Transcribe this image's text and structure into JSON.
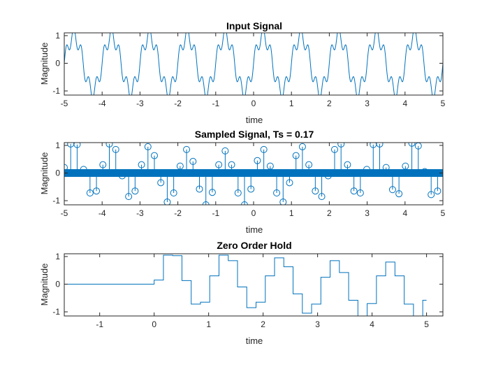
{
  "figure": {
    "background": "#ffffff",
    "line_color": "#0072bd",
    "axis_color": "#262626"
  },
  "chart_data": [
    {
      "type": "line",
      "title": "Input Signal",
      "xlabel": "time",
      "ylabel": "Magnitude",
      "xlim": [
        -5,
        5
      ],
      "ylim": [
        -1.15,
        1.1
      ],
      "xticks": [
        -5,
        -4,
        -3,
        -2,
        -1,
        0,
        1,
        2,
        3,
        4,
        5
      ],
      "xtick_labels": [
        "-5",
        "-4",
        "-3",
        "-2",
        "-1",
        "0",
        "1",
        "2",
        "3",
        "4",
        "5"
      ],
      "yticks": [
        -1,
        0,
        1
      ],
      "ytick_labels": [
        "-1",
        "0",
        "1"
      ],
      "grid": false,
      "signal": "sin(2*pi*t) + 0.3*sin(10*pi*t)",
      "x": [
        -5,
        -4.9,
        -4.8,
        -4.7,
        -4.6,
        -4.5,
        -4.4,
        -4.3,
        -4.2,
        -4.1,
        -4.0,
        -3.9,
        -3.8,
        -3.7,
        -3.6,
        -3.5,
        -3.4,
        -3.3,
        -3.2,
        -3.1,
        -3.0,
        -2.9,
        -2.8,
        -2.7,
        -2.6,
        -2.5,
        -2.4,
        -2.3,
        -2.2,
        -2.1,
        -2.0,
        -1.9,
        -1.8,
        -1.7,
        -1.6,
        -1.5,
        -1.4,
        -1.3,
        -1.2,
        -1.1,
        -1.0,
        -0.9,
        -0.8,
        -0.7,
        -0.6,
        -0.5,
        -0.4,
        -0.3,
        -0.2,
        -0.1,
        0.0,
        0.1,
        0.2,
        0.3,
        0.4,
        0.5,
        0.6,
        0.7,
        0.8,
        0.9,
        1.0,
        1.1,
        1.2,
        1.3,
        1.4,
        1.5,
        1.6,
        1.7,
        1.8,
        1.9,
        2.0,
        2.1,
        2.2,
        2.3,
        2.4,
        2.5,
        2.6,
        2.7,
        2.8,
        2.9,
        3.0,
        3.1,
        3.2,
        3.3,
        3.4,
        3.5,
        3.6,
        3.7,
        3.8,
        3.9,
        4.0,
        4.1,
        4.2,
        4.3,
        4.4,
        4.5,
        4.6,
        4.7,
        4.8,
        4.9,
        5.0
      ],
      "y": [
        0,
        0.588,
        0.951,
        0.951,
        0.588,
        0,
        -0.588,
        -0.951,
        -0.951,
        -0.588,
        0,
        0.588,
        0.951,
        0.951,
        0.588,
        0,
        -0.588,
        -0.951,
        -0.951,
        -0.588,
        0,
        0.588,
        0.951,
        0.951,
        0.588,
        0,
        -0.588,
        -0.951,
        -0.951,
        -0.588,
        0,
        0.588,
        0.951,
        0.951,
        0.588,
        0,
        -0.588,
        -0.951,
        -0.951,
        -0.588,
        0,
        0.588,
        0.951,
        0.951,
        0.588,
        0,
        -0.588,
        -0.951,
        -0.951,
        -0.588,
        0,
        0.588,
        0.951,
        0.951,
        0.588,
        0,
        -0.588,
        -0.951,
        -0.951,
        -0.588,
        0,
        0.588,
        0.951,
        0.951,
        0.588,
        0,
        -0.588,
        -0.951,
        -0.951,
        -0.588,
        0,
        0.588,
        0.951,
        0.951,
        0.588,
        0,
        -0.588,
        -0.951,
        -0.951,
        -0.588,
        0,
        0.588,
        0.951,
        0.951,
        0.588,
        0,
        -0.588,
        -0.951,
        -0.951,
        -0.588,
        0,
        0.588,
        0.951,
        0.951,
        0.588,
        0,
        -0.588,
        -0.951,
        -0.951,
        -0.588,
        0
      ]
    },
    {
      "type": "stem",
      "title": "Sampled Signal, Ts = 0.17",
      "xlabel": "time",
      "ylabel": "Magnitude",
      "xlim": [
        -5,
        5
      ],
      "ylim": [
        -1.15,
        1.1
      ],
      "xticks": [
        -5,
        -4,
        -3,
        -2,
        -1,
        0,
        1,
        2,
        3,
        4,
        5
      ],
      "xtick_labels": [
        "-5",
        "-4",
        "-3",
        "-2",
        "-1",
        "0",
        "1",
        "2",
        "3",
        "4",
        "5"
      ],
      "yticks": [
        -1,
        0,
        1
      ],
      "ytick_labels": [
        "-1",
        "0",
        "1"
      ],
      "grid": false,
      "sample_period": 0.17,
      "x": [
        -5.0,
        -4.83,
        -4.66,
        -4.49,
        -4.32,
        -4.15,
        -3.98,
        -3.81,
        -3.64,
        -3.47,
        -3.3,
        -3.13,
        -2.96,
        -2.79,
        -2.62,
        -2.45,
        -2.28,
        -2.11,
        -1.94,
        -1.77,
        -1.6,
        -1.43,
        -1.26,
        -1.09,
        -0.92,
        -0.75,
        -0.58,
        -0.41,
        -0.24,
        -0.07,
        0.1,
        0.27,
        0.44,
        0.61,
        0.78,
        0.95,
        1.12,
        1.29,
        1.46,
        1.63,
        1.8,
        1.97,
        2.14,
        2.31,
        2.48,
        2.65,
        2.82,
        2.99,
        3.16,
        3.33,
        3.5,
        3.67,
        3.84,
        4.01,
        4.18,
        4.35,
        4.52,
        4.69,
        4.86
      ],
      "y": [
        0.2,
        1.05,
        1.03,
        0.13,
        -0.72,
        -0.65,
        0.3,
        1.05,
        0.85,
        -0.1,
        -0.85,
        -0.65,
        0.3,
        0.95,
        0.63,
        -0.35,
        -1.05,
        -0.72,
        0.25,
        0.85,
        0.42,
        -0.58,
        -1.15,
        -0.7,
        0.3,
        0.8,
        0.3,
        -0.72,
        -1.15,
        -0.58,
        0.45,
        0.85,
        0.25,
        -0.72,
        -1.05,
        -0.35,
        0.63,
        0.95,
        0.3,
        -0.65,
        -0.85,
        -0.1,
        0.85,
        1.05,
        0.3,
        -0.65,
        -0.72,
        0.13,
        1.03,
        1.05,
        0.2,
        -0.6,
        -0.75,
        0.25,
        1.08,
        0.98,
        0.05,
        -0.78,
        -0.65
      ]
    },
    {
      "type": "step",
      "title": "Zero Order Hold",
      "xlabel": "time",
      "ylabel": "Magnitude",
      "xlim": [
        -1.65,
        5.3
      ],
      "ylim": [
        -1.15,
        1.1
      ],
      "xticks": [
        -1,
        0,
        1,
        2,
        3,
        4,
        5
      ],
      "xtick_labels": [
        "-1",
        "0",
        "1",
        "2",
        "3",
        "4",
        "5"
      ],
      "yticks": [
        -1,
        0,
        1
      ],
      "ytick_labels": [
        "-1",
        "0",
        "1"
      ],
      "grid": false,
      "x": [
        -1.65,
        0,
        0.17,
        0.34,
        0.51,
        0.68,
        0.85,
        1.02,
        1.19,
        1.36,
        1.53,
        1.7,
        1.87,
        2.04,
        2.21,
        2.38,
        2.55,
        2.72,
        2.89,
        3.06,
        3.23,
        3.4,
        3.57,
        3.74,
        3.91,
        4.08,
        4.25,
        4.42,
        4.59,
        4.76,
        4.93
      ],
      "y": [
        0,
        0.15,
        1.05,
        1.03,
        0.13,
        -0.72,
        -0.65,
        0.3,
        1.05,
        0.85,
        -0.1,
        -0.85,
        -0.65,
        0.3,
        0.95,
        0.63,
        -0.35,
        -1.05,
        -0.72,
        0.25,
        0.85,
        0.42,
        -0.58,
        -1.15,
        -0.7,
        0.3,
        0.8,
        0.3,
        -0.72,
        -1.15,
        -0.58
      ],
      "x_end": 5.0
    }
  ]
}
